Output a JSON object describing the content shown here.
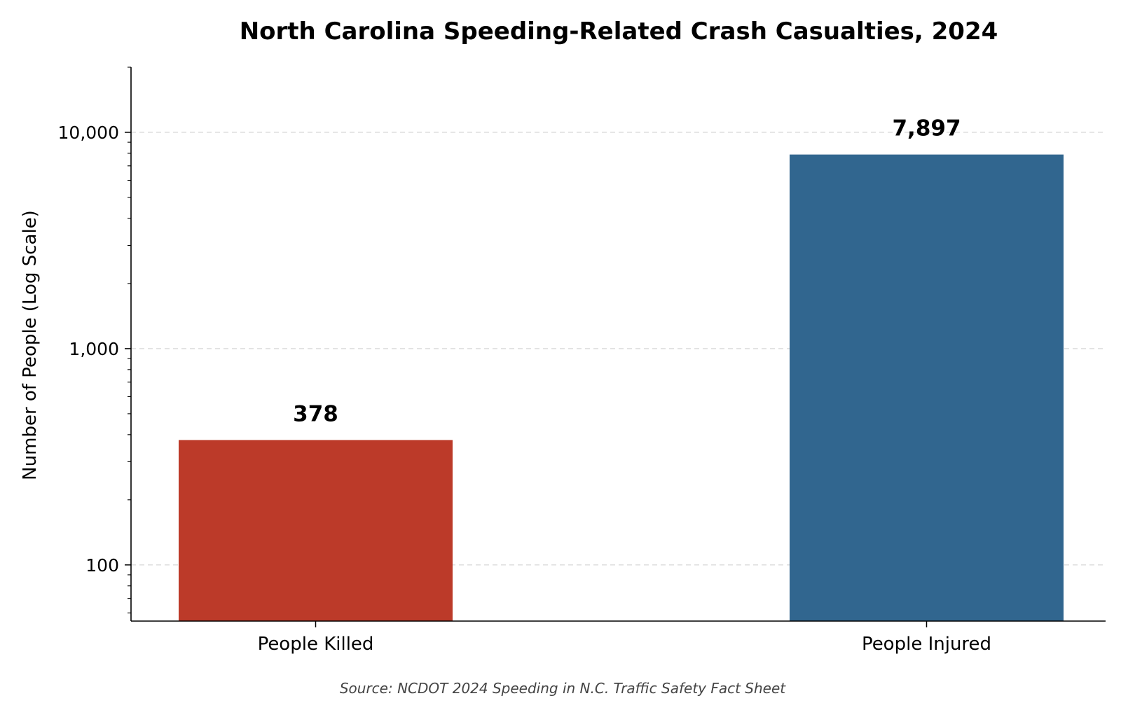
{
  "chart_data": {
    "type": "bar",
    "title": "North Carolina Speeding-Related Crash Casualties, 2024",
    "xlabel": "",
    "ylabel": "Number of People (Log Scale)",
    "y_scale": "log",
    "ylim": [
      55,
      20000
    ],
    "y_ticks": [
      {
        "value": 100,
        "label": "100"
      },
      {
        "value": 1000,
        "label": "1,000"
      },
      {
        "value": 10000,
        "label": "10,000"
      }
    ],
    "categories": [
      "People Killed",
      "People Injured"
    ],
    "values": [
      378,
      7897
    ],
    "data_labels": [
      "378",
      "7,897"
    ],
    "colors": [
      "#bc3a29",
      "#31668f"
    ],
    "grid": "horizontal-dashed",
    "legend": "none",
    "source": "Source: NCDOT 2024 Speeding in N.C. Traffic Safety Fact Sheet"
  }
}
